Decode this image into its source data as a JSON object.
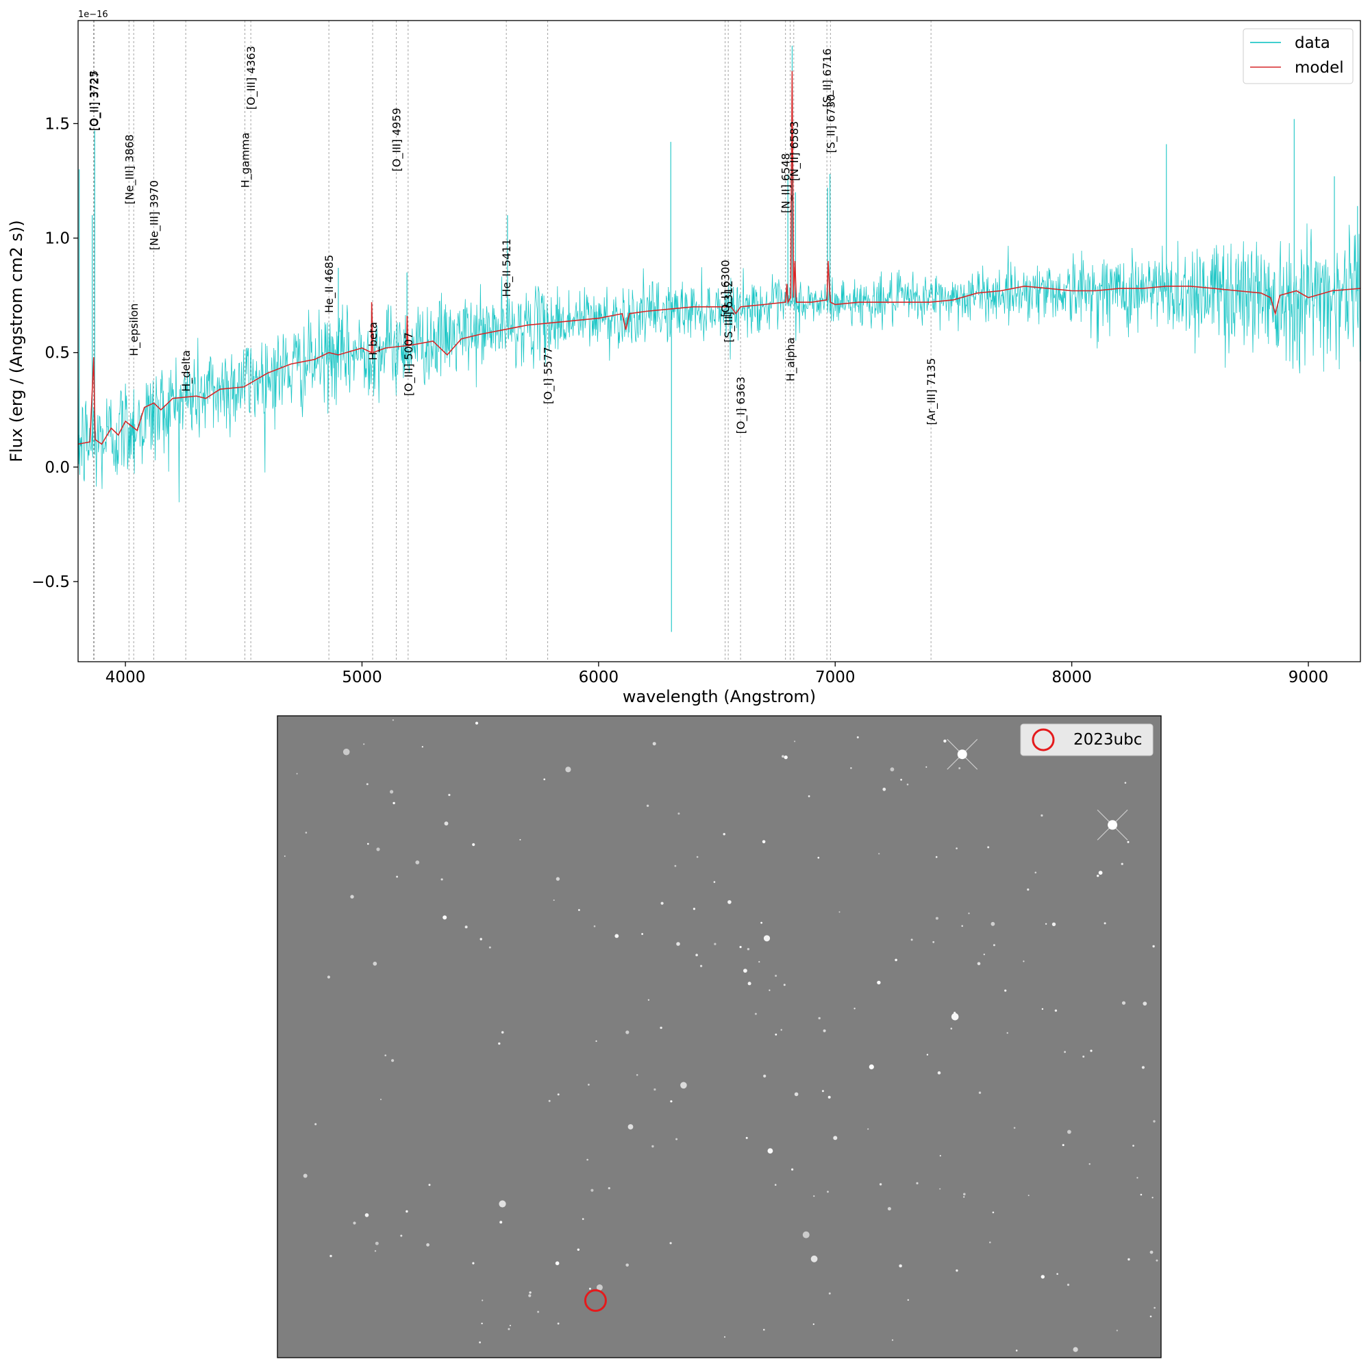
{
  "chart_data": [
    {
      "type": "line",
      "xlabel": "wavelength (Angstrom)",
      "ylabel": "Flux (erg / (Angstrom cm2 s))",
      "y_offset_label": "1e−16",
      "xlim": [
        3800,
        9220
      ],
      "ylim": [
        -0.85,
        1.95
      ],
      "x_ticks": [
        4000,
        5000,
        6000,
        7000,
        8000,
        9000
      ],
      "x_tick_labels": [
        "4000",
        "5000",
        "6000",
        "7000",
        "8000",
        "9000"
      ],
      "y_ticks": [
        -0.5,
        0.0,
        0.5,
        1.0,
        1.5
      ],
      "y_tick_labels": [
        "−0.5",
        "0.0",
        "0.5",
        "1.0",
        "1.5"
      ],
      "grid": false,
      "legend_position": "top-right",
      "series": [
        {
          "name": "data",
          "color": "#00bfbf",
          "kind": "noisy-spectrum",
          "continuum": [
            [
              3800,
              0.1
            ],
            [
              3900,
              0.12
            ],
            [
              4000,
              0.17
            ],
            [
              4100,
              0.22
            ],
            [
              4250,
              0.3
            ],
            [
              4500,
              0.37
            ],
            [
              4800,
              0.46
            ],
            [
              5000,
              0.5
            ],
            [
              5300,
              0.55
            ],
            [
              5600,
              0.61
            ],
            [
              6000,
              0.65
            ],
            [
              6300,
              0.68
            ],
            [
              6600,
              0.7
            ],
            [
              7000,
              0.72
            ],
            [
              7500,
              0.74
            ],
            [
              7800,
              0.77
            ],
            [
              8200,
              0.77
            ],
            [
              8600,
              0.77
            ],
            [
              9000,
              0.75
            ],
            [
              9220,
              0.77
            ]
          ],
          "noise_sigma": [
            [
              3800,
              0.12
            ],
            [
              4200,
              0.11
            ],
            [
              4600,
              0.1
            ],
            [
              5200,
              0.09
            ],
            [
              6000,
              0.07
            ],
            [
              7000,
              0.05
            ],
            [
              7800,
              0.06
            ],
            [
              8400,
              0.1
            ],
            [
              8800,
              0.14
            ],
            [
              9220,
              0.15
            ]
          ],
          "spikes": [
            [
              3805,
              1.3
            ],
            [
              3860,
              1.1
            ],
            [
              3870,
              1.47
            ],
            [
              4900,
              0.87
            ],
            [
              5040,
              0.68
            ],
            [
              5190,
              0.85
            ],
            [
              5615,
              1.1
            ],
            [
              6305,
              1.42
            ],
            [
              6308,
              -0.72
            ],
            [
              6800,
              1.28
            ],
            [
              6818,
              1.84
            ],
            [
              6832,
              1.2
            ],
            [
              6968,
              1.22
            ],
            [
              6978,
              1.28
            ],
            [
              8400,
              1.41
            ],
            [
              8940,
              1.52
            ],
            [
              9110,
              1.27
            ],
            [
              9208,
              1.14
            ]
          ]
        },
        {
          "name": "model",
          "color": "#d62728",
          "points": [
            [
              3800,
              0.1
            ],
            [
              3850,
              0.11
            ],
            [
              3866,
              0.48
            ],
            [
              3872,
              0.12
            ],
            [
              3900,
              0.1
            ],
            [
              3940,
              0.17
            ],
            [
              3970,
              0.14
            ],
            [
              4000,
              0.2
            ],
            [
              4050,
              0.16
            ],
            [
              4080,
              0.26
            ],
            [
              4120,
              0.28
            ],
            [
              4150,
              0.25
            ],
            [
              4200,
              0.3
            ],
            [
              4300,
              0.31
            ],
            [
              4340,
              0.3
            ],
            [
              4400,
              0.34
            ],
            [
              4500,
              0.35
            ],
            [
              4600,
              0.41
            ],
            [
              4700,
              0.45
            ],
            [
              4800,
              0.47
            ],
            [
              4860,
              0.5
            ],
            [
              4900,
              0.49
            ],
            [
              5000,
              0.52
            ],
            [
              5040,
              0.5
            ],
            [
              5041,
              0.72
            ],
            [
              5046,
              0.5
            ],
            [
              5100,
              0.52
            ],
            [
              5189,
              0.53
            ],
            [
              5191,
              0.66
            ],
            [
              5194,
              0.53
            ],
            [
              5300,
              0.55
            ],
            [
              5360,
              0.49
            ],
            [
              5420,
              0.56
            ],
            [
              5500,
              0.58
            ],
            [
              5600,
              0.6
            ],
            [
              5700,
              0.62
            ],
            [
              5800,
              0.63
            ],
            [
              5900,
              0.64
            ],
            [
              6000,
              0.65
            ],
            [
              6100,
              0.67
            ],
            [
              6115,
              0.6
            ],
            [
              6130,
              0.67
            ],
            [
              6200,
              0.68
            ],
            [
              6300,
              0.69
            ],
            [
              6400,
              0.7
            ],
            [
              6500,
              0.7
            ],
            [
              6560,
              0.7
            ],
            [
              6580,
              0.67
            ],
            [
              6600,
              0.7
            ],
            [
              6700,
              0.71
            ],
            [
              6790,
              0.72
            ],
            [
              6796,
              0.8
            ],
            [
              6800,
              0.72
            ],
            [
              6812,
              0.74
            ],
            [
              6818,
              1.73
            ],
            [
              6824,
              0.74
            ],
            [
              6830,
              0.9
            ],
            [
              6836,
              0.72
            ],
            [
              6900,
              0.72
            ],
            [
              6965,
              0.73
            ],
            [
              6970,
              0.9
            ],
            [
              6975,
              0.8
            ],
            [
              6980,
              0.72
            ],
            [
              7000,
              0.71
            ],
            [
              7100,
              0.72
            ],
            [
              7200,
              0.72
            ],
            [
              7300,
              0.72
            ],
            [
              7400,
              0.72
            ],
            [
              7500,
              0.73
            ],
            [
              7600,
              0.76
            ],
            [
              7700,
              0.77
            ],
            [
              7800,
              0.79
            ],
            [
              7900,
              0.78
            ],
            [
              8000,
              0.77
            ],
            [
              8100,
              0.77
            ],
            [
              8200,
              0.78
            ],
            [
              8300,
              0.78
            ],
            [
              8400,
              0.79
            ],
            [
              8500,
              0.79
            ],
            [
              8600,
              0.78
            ],
            [
              8700,
              0.77
            ],
            [
              8800,
              0.76
            ],
            [
              8840,
              0.74
            ],
            [
              8860,
              0.67
            ],
            [
              8880,
              0.75
            ],
            [
              8950,
              0.77
            ],
            [
              9000,
              0.74
            ],
            [
              9100,
              0.77
            ],
            [
              9220,
              0.78
            ]
          ]
        }
      ],
      "line_markers": [
        {
          "label": "[O_II] 3725",
          "wavelength": 3865,
          "label_y": 1.6
        },
        {
          "label": "[O_II] 3727",
          "wavelength": 3868,
          "label_y": 1.6
        },
        {
          "label": "[Ne_III] 3868",
          "wavelength": 4015,
          "label_y": 1.3
        },
        {
          "label": "H_epsilon",
          "wavelength": 4035,
          "label_y": 0.6
        },
        {
          "label": "[Ne_III] 3970",
          "wavelength": 4120,
          "label_y": 1.1
        },
        {
          "label": "H_delta",
          "wavelength": 4255,
          "label_y": 0.42
        },
        {
          "label": "H_gamma",
          "wavelength": 4505,
          "label_y": 1.34
        },
        {
          "label": "[O_III] 4363",
          "wavelength": 4530,
          "label_y": 1.7
        },
        {
          "label": "He_II 4685",
          "wavelength": 4860,
          "label_y": 0.8
        },
        {
          "label": "H_beta",
          "wavelength": 5045,
          "label_y": 0.55
        },
        {
          "label": "[O_III] 4959",
          "wavelength": 5145,
          "label_y": 1.43
        },
        {
          "label": "[O_III] 5007",
          "wavelength": 5195,
          "label_y": 0.45
        },
        {
          "label": "He_II 5411",
          "wavelength": 5610,
          "label_y": 0.87
        },
        {
          "label": "[O_I] 5577",
          "wavelength": 5785,
          "label_y": 0.4
        },
        {
          "label": "[O_I] 6300",
          "wavelength": 6535,
          "label_y": 0.78
        },
        {
          "label": "[S_III] 6312",
          "wavelength": 6548,
          "label_y": 0.68
        },
        {
          "label": "[O_I] 6363",
          "wavelength": 6600,
          "label_y": 0.27
        },
        {
          "label": "[N_II] 6548",
          "wavelength": 6790,
          "label_y": 1.24
        },
        {
          "label": "H_alpha",
          "wavelength": 6810,
          "label_y": 0.47
        },
        {
          "label": "[N_II] 6583",
          "wavelength": 6825,
          "label_y": 1.38
        },
        {
          "label": "[S_II] 6716",
          "wavelength": 6965,
          "label_y": 1.7
        },
        {
          "label": "[S_II] 6730",
          "wavelength": 6980,
          "label_y": 1.5
        },
        {
          "label": "[Ar_III] 7135",
          "wavelength": 7405,
          "label_y": 0.33
        }
      ]
    },
    {
      "type": "image",
      "description_kind": "grayscale sky cutout",
      "background_color": "#7f7f7f",
      "legend_position": "top-right",
      "legend_label": "2023ubc",
      "marker_color": "#e41a1c",
      "marker_position_fraction": [
        0.36,
        0.911
      ]
    }
  ]
}
